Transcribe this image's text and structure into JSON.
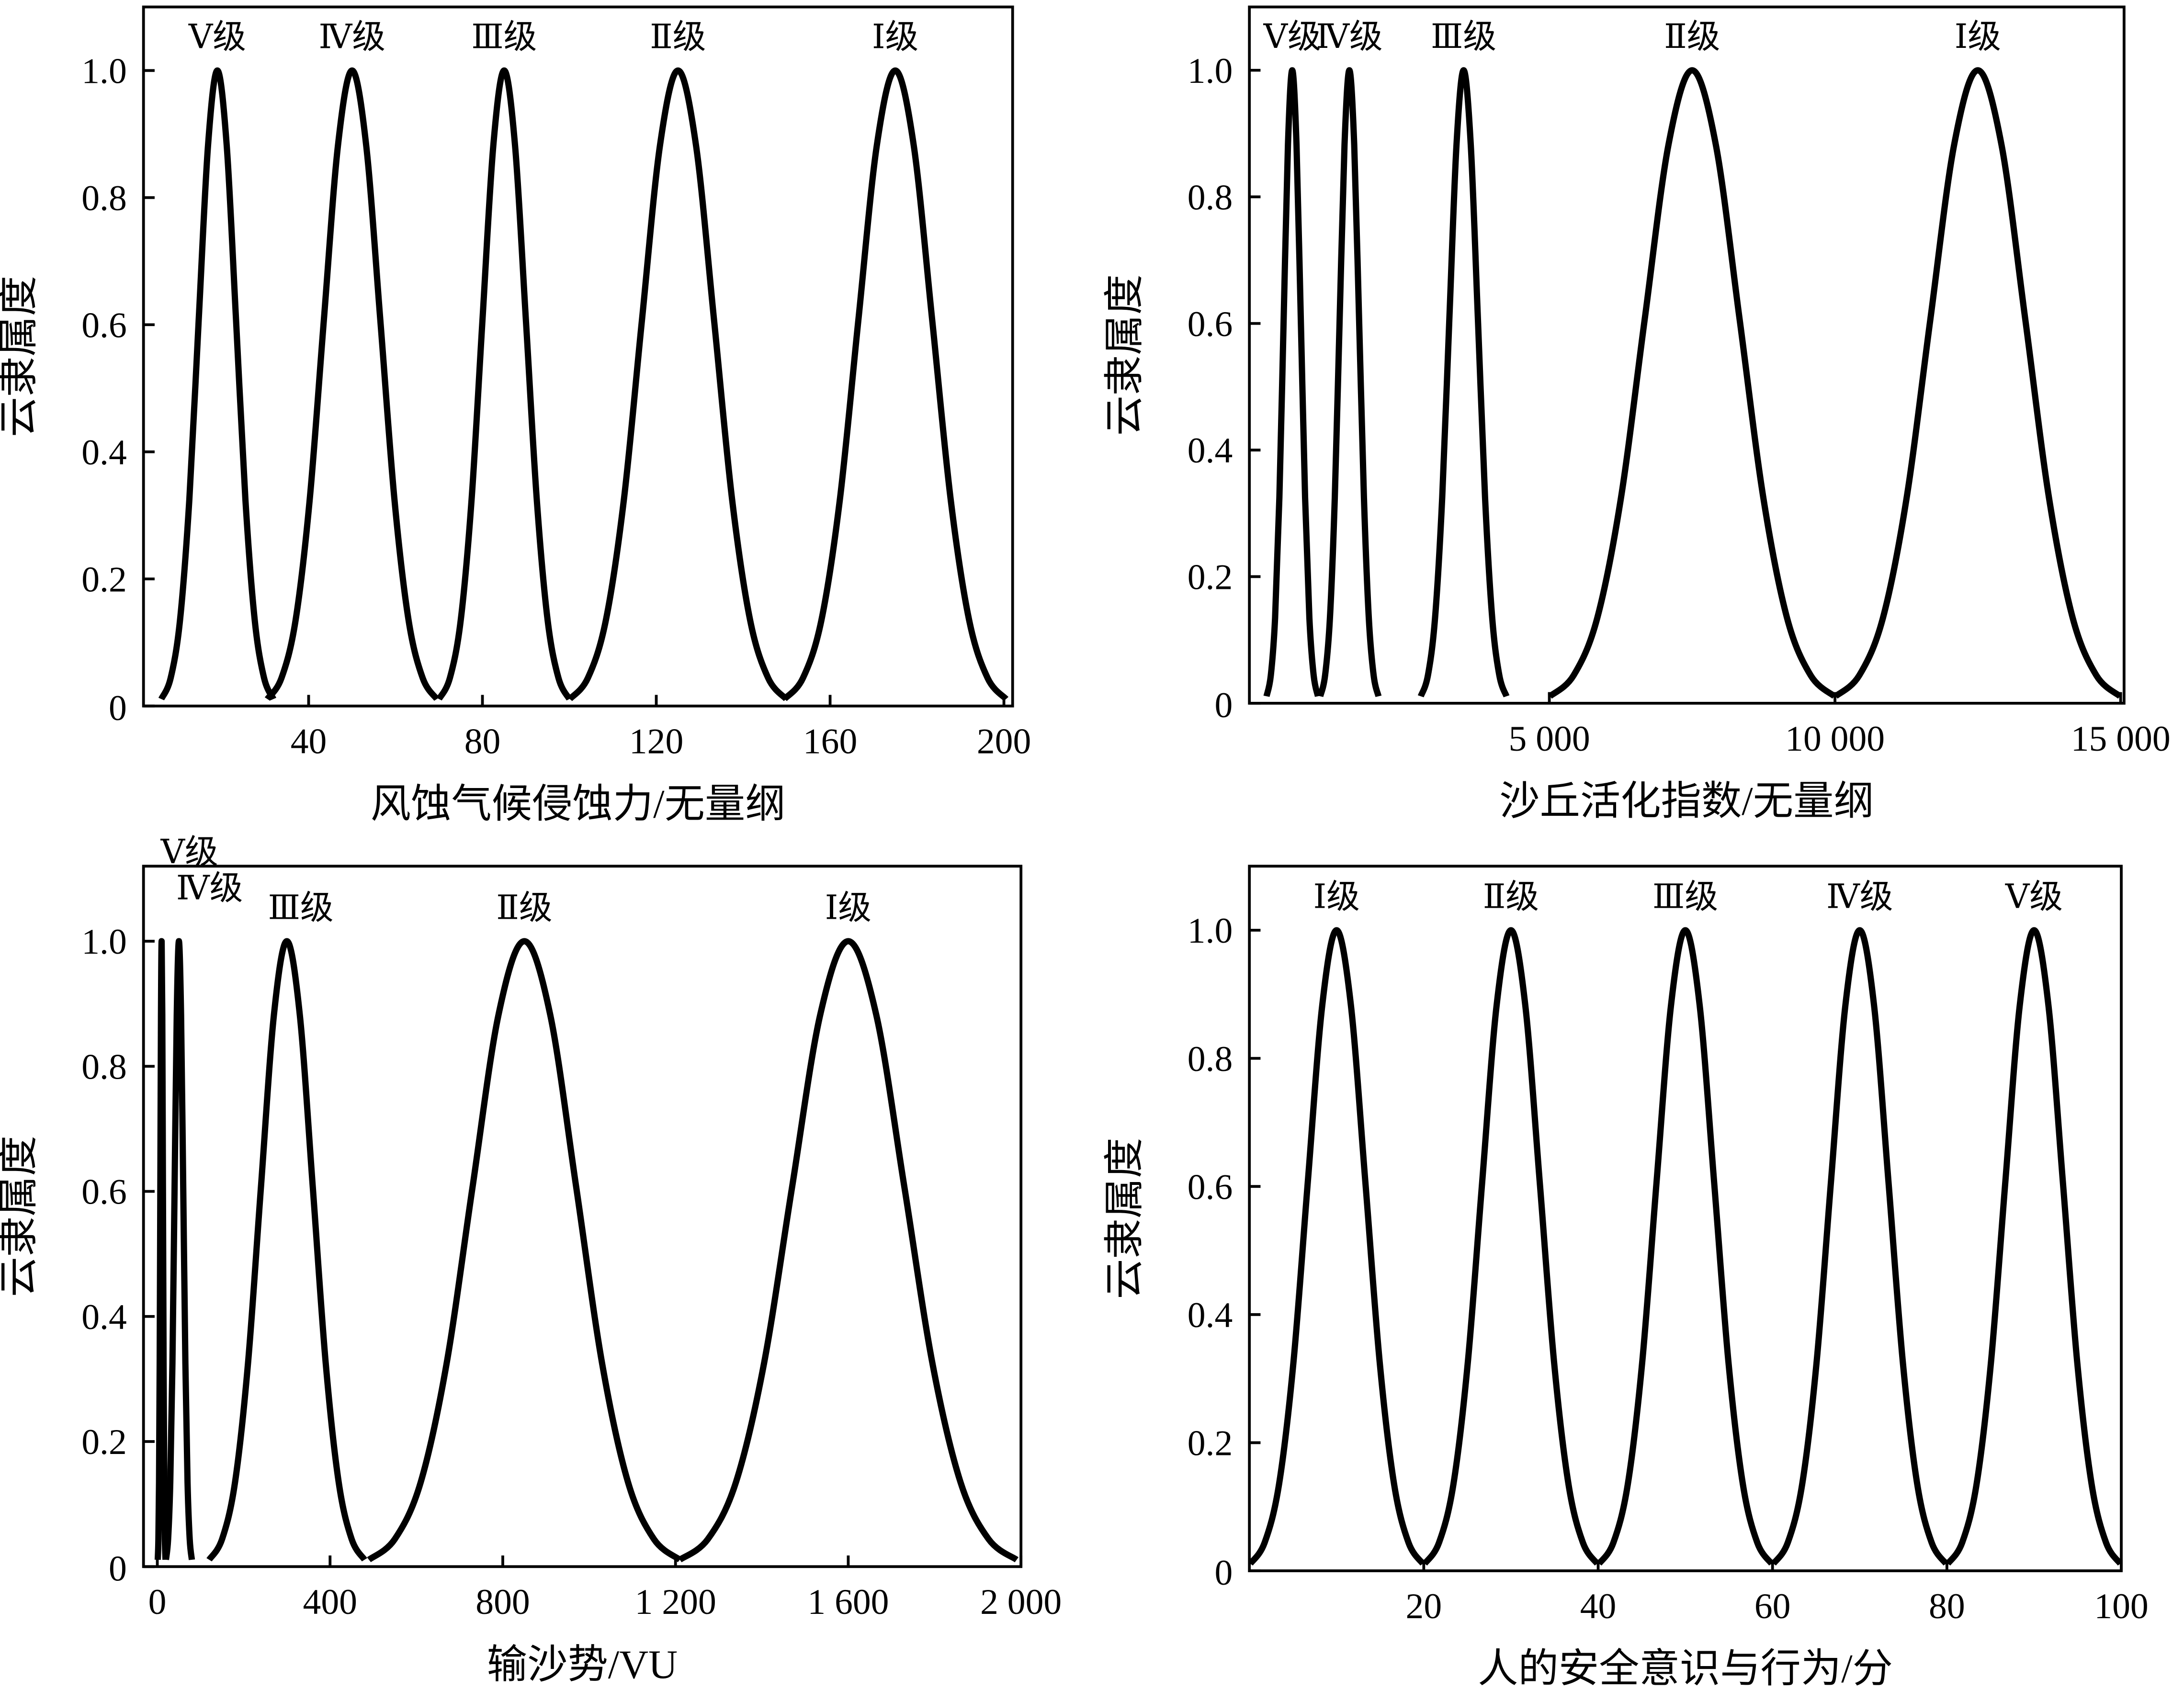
{
  "chart_data": [
    {
      "type": "line",
      "xlabel": "风蚀气候侵蚀力/无量纲",
      "ylabel": "云隶属度",
      "xlim": [
        2,
        202
      ],
      "ylim": [
        0,
        1.1
      ],
      "xticks": [
        40,
        80,
        120,
        160,
        200
      ],
      "yticks": [
        0,
        0.2,
        0.4,
        0.6,
        0.8,
        {
          "value": 1,
          "label": "1.0"
        }
      ],
      "series": [
        {
          "name": "Ⅴ级",
          "color": "#000000",
          "x": [
            6.1,
            8.25,
            10.4,
            12.55,
            14.7,
            16.85,
            19,
            21.15,
            23.3,
            25.45,
            27.6,
            29.75,
            31.9
          ],
          "values": [
            0.011,
            0.044,
            0.135,
            0.325,
            0.607,
            0.882,
            1,
            0.882,
            0.607,
            0.325,
            0.135,
            0.044,
            0.011
          ]
        },
        {
          "name": "Ⅳ级",
          "color": "#000000",
          "x": [
            30.5,
            33.75,
            37,
            40.25,
            43.5,
            46.75,
            50,
            53.25,
            56.5,
            59.75,
            63,
            66.25,
            69.5
          ],
          "values": [
            0.011,
            0.044,
            0.135,
            0.325,
            0.607,
            0.882,
            1,
            0.882,
            0.607,
            0.325,
            0.135,
            0.044,
            0.011
          ]
        },
        {
          "name": "Ⅲ级",
          "color": "#000000",
          "x": [
            70,
            72.5,
            75,
            77.5,
            80,
            82.5,
            85,
            87.5,
            90,
            92.5,
            95,
            97.5,
            100
          ],
          "values": [
            0.011,
            0.044,
            0.135,
            0.325,
            0.607,
            0.882,
            1,
            0.882,
            0.607,
            0.325,
            0.135,
            0.044,
            0.011
          ]
        },
        {
          "name": "Ⅱ级",
          "color": "#000000",
          "x": [
            100.1,
            104.25,
            108.4,
            112.55,
            116.7,
            120.85,
            125,
            129.15,
            133.3,
            137.45,
            141.6,
            145.75,
            149.9
          ],
          "values": [
            0.011,
            0.044,
            0.135,
            0.325,
            0.607,
            0.882,
            1,
            0.882,
            0.607,
            0.325,
            0.135,
            0.044,
            0.011
          ]
        },
        {
          "name": "Ⅰ级",
          "color": "#000000",
          "x": [
            149.5,
            153.75,
            158,
            162.25,
            166.5,
            170.75,
            175,
            179.25,
            183.5,
            187.75,
            192,
            196.25,
            200.5
          ],
          "values": [
            0.011,
            0.044,
            0.135,
            0.325,
            0.607,
            0.882,
            1,
            0.882,
            0.607,
            0.325,
            0.135,
            0.044,
            0.011
          ]
        }
      ]
    },
    {
      "type": "line",
      "xlabel": "沙丘活化指数/无量纲",
      "ylabel": "云隶属度",
      "xlim": [
        -250,
        15060
      ],
      "ylim": [
        0,
        1.1
      ],
      "xticks": [
        {
          "value": 5000,
          "label": "5 000"
        },
        {
          "value": 10000,
          "label": "10 000"
        },
        {
          "value": 15000,
          "label": "15 000"
        }
      ],
      "yticks": [
        0,
        0.2,
        0.4,
        0.6,
        0.8,
        {
          "value": 1,
          "label": "1.0"
        }
      ],
      "series": [
        {
          "name": "Ⅴ级",
          "color": "#000000",
          "x": [
            50,
            125,
            200,
            275,
            350,
            425,
            500,
            575,
            650,
            725,
            800,
            875,
            950
          ],
          "values": [
            0.011,
            0.044,
            0.135,
            0.325,
            0.607,
            0.882,
            1,
            0.882,
            0.607,
            0.325,
            0.135,
            0.044,
            0.011
          ]
        },
        {
          "name": "Ⅳ级",
          "color": "#000000",
          "x": [
            990,
            1075,
            1160,
            1245,
            1330,
            1415,
            1500,
            1585,
            1670,
            1755,
            1840,
            1925,
            2010
          ],
          "values": [
            0.011,
            0.044,
            0.135,
            0.325,
            0.607,
            0.882,
            1,
            0.882,
            0.607,
            0.325,
            0.135,
            0.044,
            0.011
          ]
        },
        {
          "name": "Ⅲ级",
          "color": "#000000",
          "x": [
            2750,
            2875,
            3000,
            3125,
            3250,
            3375,
            3500,
            3625,
            3750,
            3875,
            4000,
            4125,
            4250
          ],
          "values": [
            0.011,
            0.044,
            0.135,
            0.325,
            0.607,
            0.882,
            1,
            0.882,
            0.607,
            0.325,
            0.135,
            0.044,
            0.011
          ]
        },
        {
          "name": "Ⅱ级",
          "color": "#000000",
          "x": [
            5010,
            5425,
            5840,
            6255,
            6670,
            7085,
            7500,
            7915,
            8330,
            8745,
            9160,
            9575,
            9990
          ],
          "values": [
            0.011,
            0.044,
            0.135,
            0.325,
            0.607,
            0.882,
            1,
            0.882,
            0.607,
            0.325,
            0.135,
            0.044,
            0.011
          ]
        },
        {
          "name": "Ⅰ级",
          "color": "#000000",
          "x": [
            10010,
            10425,
            10840,
            11255,
            11670,
            12085,
            12500,
            12915,
            13330,
            13745,
            14160,
            14575,
            14990
          ],
          "values": [
            0.011,
            0.044,
            0.135,
            0.325,
            0.607,
            0.882,
            1,
            0.882,
            0.607,
            0.325,
            0.135,
            0.044,
            0.011
          ]
        }
      ]
    },
    {
      "type": "line",
      "xlabel": "输沙势/VU",
      "ylabel": "云隶属度",
      "xlim": [
        -32,
        2000
      ],
      "ylim": [
        0,
        1.12
      ],
      "xticks": [
        0,
        400,
        800,
        {
          "value": 1200,
          "label": "1 200"
        },
        {
          "value": 1600,
          "label": "1 600"
        },
        {
          "value": 2000,
          "label": "2 000"
        }
      ],
      "yticks": [
        0,
        0.2,
        0.4,
        0.6,
        0.8,
        {
          "value": 1,
          "label": "1.0"
        }
      ],
      "series": [
        {
          "name": "Ⅴ级",
          "color": "#000000",
          "x": [
            1,
            2.5,
            4,
            5.5,
            7,
            8.5,
            10,
            11.5,
            13,
            14.5,
            16,
            17.5,
            19
          ],
          "values": [
            0.011,
            0.044,
            0.135,
            0.325,
            0.607,
            0.882,
            1,
            0.882,
            0.607,
            0.325,
            0.135,
            0.044,
            0.011
          ]
        },
        {
          "name": "Ⅳ级",
          "color": "#000000",
          "x": [
            20,
            25,
            30,
            35,
            40,
            45,
            50,
            55,
            60,
            65,
            70,
            75,
            80
          ],
          "values": [
            0.011,
            0.044,
            0.135,
            0.325,
            0.607,
            0.882,
            1,
            0.882,
            0.607,
            0.325,
            0.135,
            0.044,
            0.011
          ]
        },
        {
          "name": "Ⅲ级",
          "color": "#000000",
          "x": [
            120,
            150,
            180,
            210,
            240,
            270,
            300,
            330,
            360,
            390,
            420,
            450,
            480
          ],
          "values": [
            0.011,
            0.044,
            0.135,
            0.325,
            0.607,
            0.882,
            1,
            0.882,
            0.607,
            0.325,
            0.135,
            0.044,
            0.011
          ]
        },
        {
          "name": "Ⅱ级",
          "color": "#000000",
          "x": [
            490,
            550,
            610,
            670,
            730,
            790,
            850,
            910,
            970,
            1030,
            1090,
            1150,
            1210
          ],
          "values": [
            0.011,
            0.044,
            0.135,
            0.325,
            0.607,
            0.882,
            1,
            0.882,
            0.607,
            0.325,
            0.135,
            0.044,
            0.011
          ]
        },
        {
          "name": "Ⅰ级",
          "color": "#000000",
          "x": [
            1210,
            1275,
            1340,
            1405,
            1470,
            1535,
            1600,
            1665,
            1730,
            1795,
            1860,
            1925,
            1990
          ],
          "values": [
            0.011,
            0.044,
            0.135,
            0.325,
            0.607,
            0.882,
            1,
            0.882,
            0.607,
            0.325,
            0.135,
            0.044,
            0.011
          ]
        }
      ]
    },
    {
      "type": "line",
      "xlabel": "人的安全意识与行为/分",
      "ylabel": "云隶属度",
      "xlim": [
        0,
        100
      ],
      "ylim": [
        0,
        1.1
      ],
      "xticks": [
        20,
        40,
        60,
        80,
        100
      ],
      "yticks": [
        0,
        0.2,
        0.4,
        0.6,
        0.8,
        {
          "value": 1,
          "label": "1.0"
        }
      ],
      "series": [
        {
          "name": "Ⅰ级",
          "color": "#000000",
          "x": [
            0.1,
            1.75,
            3.4,
            5.05,
            6.7,
            8.35,
            10,
            11.65,
            13.3,
            14.95,
            16.6,
            18.25,
            19.9
          ],
          "values": [
            0.011,
            0.044,
            0.135,
            0.325,
            0.607,
            0.882,
            1,
            0.882,
            0.607,
            0.325,
            0.135,
            0.044,
            0.011
          ]
        },
        {
          "name": "Ⅱ级",
          "color": "#000000",
          "x": [
            20.1,
            21.75,
            23.4,
            25.05,
            26.7,
            28.35,
            30,
            31.65,
            33.3,
            34.95,
            36.6,
            38.25,
            39.9
          ],
          "values": [
            0.011,
            0.044,
            0.135,
            0.325,
            0.607,
            0.882,
            1,
            0.882,
            0.607,
            0.325,
            0.135,
            0.044,
            0.011
          ]
        },
        {
          "name": "Ⅲ级",
          "color": "#000000",
          "x": [
            40.1,
            41.75,
            43.4,
            45.05,
            46.7,
            48.35,
            50,
            51.65,
            53.3,
            54.95,
            56.6,
            58.25,
            59.9
          ],
          "values": [
            0.011,
            0.044,
            0.135,
            0.325,
            0.607,
            0.882,
            1,
            0.882,
            0.607,
            0.325,
            0.135,
            0.044,
            0.011
          ]
        },
        {
          "name": "Ⅳ级",
          "color": "#000000",
          "x": [
            60.1,
            61.75,
            63.4,
            65.05,
            66.7,
            68.35,
            70,
            71.65,
            73.3,
            74.95,
            76.6,
            78.25,
            79.9
          ],
          "values": [
            0.011,
            0.044,
            0.135,
            0.325,
            0.607,
            0.882,
            1,
            0.882,
            0.607,
            0.325,
            0.135,
            0.044,
            0.011
          ]
        },
        {
          "name": "Ⅴ级",
          "color": "#000000",
          "x": [
            80.1,
            81.75,
            83.4,
            85.05,
            86.7,
            88.35,
            90,
            91.65,
            93.3,
            94.95,
            96.6,
            98.25,
            99.9
          ],
          "values": [
            0.011,
            0.044,
            0.135,
            0.325,
            0.607,
            0.882,
            1,
            0.882,
            0.607,
            0.325,
            0.135,
            0.044,
            0.011
          ]
        }
      ]
    }
  ]
}
